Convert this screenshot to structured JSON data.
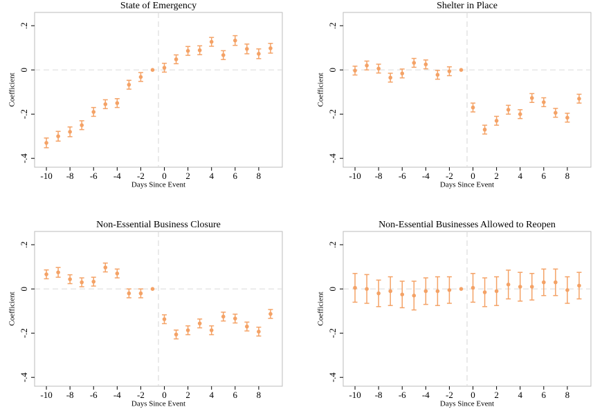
{
  "chart_data": [
    {
      "type": "errorbar",
      "title": "State of Emergency",
      "xlabel": "Days Since Event",
      "ylabel": "Coefficient",
      "color": "#f4a266",
      "x": [
        -10,
        -9,
        -8,
        -7,
        -6,
        -5,
        -4,
        -3,
        -2,
        -1,
        0,
        1,
        2,
        3,
        4,
        5,
        6,
        7,
        8,
        9
      ],
      "values": [
        -0.33,
        -0.3,
        -0.28,
        -0.25,
        -0.19,
        -0.155,
        -0.15,
        -0.067,
        -0.032,
        0,
        0.01,
        0.048,
        0.086,
        0.089,
        0.127,
        0.067,
        0.133,
        0.095,
        0.073,
        0.098
      ],
      "errors": [
        0.022,
        0.022,
        0.022,
        0.02,
        0.02,
        0.02,
        0.02,
        0.02,
        0.02,
        0,
        0.02,
        0.02,
        0.02,
        0.02,
        0.02,
        0.02,
        0.022,
        0.022,
        0.022,
        0.022
      ],
      "xlim": [
        -11,
        10
      ],
      "ylim": [
        -0.44,
        0.26
      ],
      "xticks": [
        -10,
        -8,
        -6,
        -4,
        -2,
        0,
        2,
        4,
        6,
        8
      ],
      "yticks": [
        {
          "value": -0.4,
          "label": "-.4"
        },
        {
          "value": -0.2,
          "label": "-.2"
        },
        0,
        {
          "value": 0.2,
          "label": ".2"
        }
      ],
      "reference_x": -0.5,
      "reference_y": 0
    },
    {
      "type": "errorbar",
      "title": "Shelter in Place",
      "xlabel": "Days Since Event",
      "ylabel": "Coefficient",
      "color": "#f4a266",
      "x": [
        -10,
        -9,
        -8,
        -7,
        -6,
        -5,
        -4,
        -3,
        -2,
        -1,
        0,
        1,
        2,
        3,
        4,
        5,
        6,
        7,
        8,
        9
      ],
      "values": [
        -0.003,
        0.02,
        0.006,
        -0.035,
        -0.016,
        0.032,
        0.025,
        -0.022,
        -0.006,
        0,
        -0.17,
        -0.27,
        -0.23,
        -0.18,
        -0.2,
        -0.127,
        -0.146,
        -0.194,
        -0.216,
        -0.13
      ],
      "errors": [
        0.02,
        0.02,
        0.02,
        0.02,
        0.02,
        0.02,
        0.02,
        0.02,
        0.02,
        0,
        0.02,
        0.02,
        0.02,
        0.02,
        0.02,
        0.02,
        0.02,
        0.02,
        0.02,
        0.02
      ],
      "xlim": [
        -11,
        10
      ],
      "ylim": [
        -0.44,
        0.26
      ],
      "xticks": [
        -10,
        -8,
        -6,
        -4,
        -2,
        0,
        2,
        4,
        6,
        8
      ],
      "yticks": [
        {
          "value": -0.4,
          "label": "-.4"
        },
        {
          "value": -0.2,
          "label": "-.2"
        },
        0,
        {
          "value": 0.2,
          "label": ".2"
        }
      ],
      "reference_x": -0.5,
      "reference_y": 0
    },
    {
      "type": "errorbar",
      "title": "Non-Essential Business Closure",
      "xlabel": "Days Since Event",
      "ylabel": "Coefficient",
      "color": "#f4a266",
      "x": [
        -10,
        -9,
        -8,
        -7,
        -6,
        -5,
        -4,
        -3,
        -2,
        -1,
        0,
        1,
        2,
        3,
        4,
        5,
        6,
        7,
        8,
        9
      ],
      "values": [
        0.066,
        0.075,
        0.044,
        0.03,
        0.033,
        0.097,
        0.07,
        -0.02,
        -0.02,
        0,
        -0.137,
        -0.206,
        -0.187,
        -0.156,
        -0.187,
        -0.125,
        -0.134,
        -0.17,
        -0.193,
        -0.113
      ],
      "errors": [
        0.02,
        0.022,
        0.02,
        0.02,
        0.02,
        0.02,
        0.02,
        0.02,
        0.02,
        0,
        0.02,
        0.02,
        0.02,
        0.02,
        0.02,
        0.02,
        0.02,
        0.02,
        0.02,
        0.02
      ],
      "xlim": [
        -11,
        10
      ],
      "ylim": [
        -0.44,
        0.26
      ],
      "xticks": [
        -10,
        -8,
        -6,
        -4,
        -2,
        0,
        2,
        4,
        6,
        8
      ],
      "yticks": [
        {
          "value": -0.4,
          "label": "-.4"
        },
        {
          "value": -0.2,
          "label": "-.2"
        },
        0,
        {
          "value": 0.2,
          "label": ".2"
        }
      ],
      "reference_x": -0.5,
      "reference_y": 0
    },
    {
      "type": "errorbar",
      "title": "Non-Essential Businesses Allowed to Reopen",
      "xlabel": "Days Since Event",
      "ylabel": "Coefficient",
      "color": "#f4a266",
      "x": [
        -10,
        -9,
        -8,
        -7,
        -6,
        -5,
        -4,
        -3,
        -2,
        -1,
        0,
        1,
        2,
        3,
        4,
        5,
        6,
        7,
        8,
        9
      ],
      "values": [
        0.005,
        0,
        -0.02,
        -0.01,
        -0.025,
        -0.03,
        -0.01,
        -0.01,
        -0.005,
        0,
        0.005,
        -0.015,
        -0.01,
        0.02,
        0.01,
        0.01,
        0.03,
        0.03,
        -0.005,
        0.015
      ],
      "errors": [
        0.065,
        0.065,
        0.06,
        0.065,
        0.06,
        0.065,
        0.06,
        0.065,
        0.06,
        0,
        0.065,
        0.065,
        0.065,
        0.065,
        0.065,
        0.06,
        0.06,
        0.06,
        0.06,
        0.06
      ],
      "xlim": [
        -11,
        10
      ],
      "ylim": [
        -0.44,
        0.26
      ],
      "xticks": [
        -10,
        -8,
        -6,
        -4,
        -2,
        0,
        2,
        4,
        6,
        8
      ],
      "yticks": [
        {
          "value": -0.4,
          "label": "-.4"
        },
        {
          "value": -0.2,
          "label": "-.2"
        },
        0,
        {
          "value": 0.2,
          "label": ".2"
        }
      ],
      "reference_x": -0.5,
      "reference_y": 0
    }
  ]
}
